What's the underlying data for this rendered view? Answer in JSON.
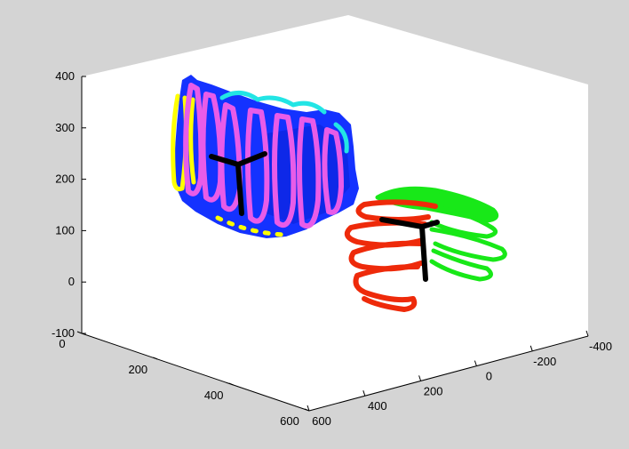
{
  "chart_data": {
    "type": "scatter3d",
    "title": "",
    "xlabel": "",
    "ylabel": "",
    "zlabel": "",
    "view": "isometric",
    "grid": false,
    "xlim": [
      0,
      600
    ],
    "ylim": [
      -400,
      600
    ],
    "zlim": [
      -100,
      400
    ],
    "x_ticks": [
      "0",
      "200",
      "400",
      "600"
    ],
    "y_ticks": [
      "-400",
      "-200",
      "0",
      "200",
      "400",
      "600"
    ],
    "z_ticks": [
      "-100",
      "0",
      "100",
      "200",
      "300",
      "400"
    ],
    "colors": {
      "background": "#d4d4d4",
      "axes_face": "#ffffff",
      "blue": "#1432ff",
      "magenta": "#e85ce8",
      "yellow": "#ffff00",
      "cyan": "#22e5e5",
      "red": "#ee2a0a",
      "green": "#18e818",
      "frame": "#000000"
    },
    "series": [
      {
        "kind": "surface-patch",
        "color": "blue"
      },
      {
        "kind": "scan-strokes",
        "color": "magenta"
      },
      {
        "kind": "scan-strokes",
        "color": "yellow"
      },
      {
        "kind": "scan-strokes",
        "color": "cyan"
      },
      {
        "kind": "coordinate-frame",
        "color": "frame"
      },
      {
        "kind": "scan-loops",
        "color": "red"
      },
      {
        "kind": "scan-loops",
        "color": "green"
      },
      {
        "kind": "coordinate-frame",
        "color": "frame"
      }
    ]
  }
}
